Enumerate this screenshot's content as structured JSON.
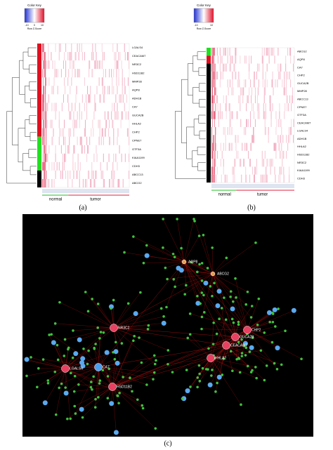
{
  "panel_a": {
    "color_key": {
      "title": "Color Key",
      "axis_label": "Row Z-Score",
      "ticks": [
        "-10",
        "0",
        "10"
      ]
    },
    "genes": [
      "LGALS4",
      "CEACAM7",
      "NR3C2",
      "HSD11B2",
      "MMP28",
      "AQP8",
      "ADH1B",
      "CA7",
      "GUCA2B",
      "HHLA2",
      "CHP2",
      "CPNE7",
      "GTF3A",
      "KIAA1199",
      "CDH3",
      "ABCC13",
      "ABCG2"
    ],
    "groups": [
      "normal",
      "tumor"
    ],
    "caption": "(a)"
  },
  "panel_b": {
    "color_key": {
      "title": "Color Key",
      "axis_label": "Row Z-Score",
      "ticks": [
        "-10",
        "10"
      ]
    },
    "genes": [
      "ABCG2",
      "AQP8",
      "CA7",
      "CHP2",
      "GUCA2B",
      "MMP28",
      "ABCC13",
      "CPNE7",
      "GTF3A",
      "CEACAM7",
      "LGALS4",
      "ADH1B",
      "HHLA2",
      "HSD11B2",
      "NR3C2",
      "KIAA1199",
      "CDH3"
    ],
    "groups": [
      "normal",
      "tumor"
    ],
    "caption": "(b)"
  },
  "panel_c": {
    "hubs": [
      "AQP8",
      "ABCG2",
      "CHP2",
      "GUCA2B",
      "CEACAM7",
      "HHLA2",
      "NR3C2",
      "LGALS4",
      "CA7",
      "HSD11B2"
    ],
    "caption": "(c)"
  }
}
